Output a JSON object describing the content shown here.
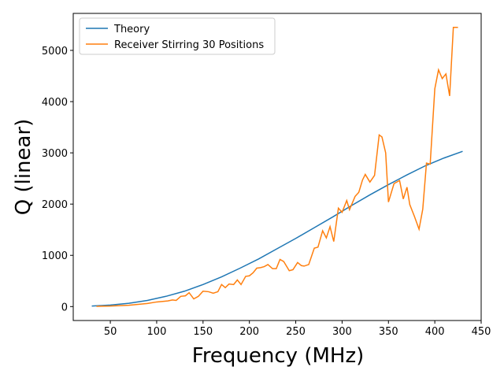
{
  "chart_data": {
    "type": "line",
    "x_label": "Frequency (MHz)",
    "y_label": "Q (linear)",
    "xlim": [
      10,
      450
    ],
    "ylim": [
      -272,
      5722
    ],
    "xticks": [
      50,
      100,
      150,
      200,
      250,
      300,
      350,
      400,
      450
    ],
    "yticks": [
      0,
      1000,
      2000,
      3000,
      4000,
      5000
    ],
    "legend": "upper left",
    "series": [
      {
        "name": "Theory",
        "color": "#1f77b4",
        "x": [
          30,
          50,
          70,
          90,
          110,
          130,
          150,
          170,
          190,
          210,
          230,
          250,
          270,
          290,
          310,
          330,
          350,
          370,
          390,
          410,
          430
        ],
        "values": [
          10,
          30,
          65,
          120,
          200,
          300,
          430,
          580,
          750,
          930,
          1130,
          1330,
          1540,
          1750,
          1970,
          2180,
          2380,
          2570,
          2750,
          2900,
          3030
        ]
      },
      {
        "name": "Receiver Stirring 30 Positions",
        "color": "#ff7f0e",
        "x": [
          35,
          50,
          70,
          90,
          100,
          112,
          117,
          121,
          126,
          131,
          135,
          140,
          145,
          150,
          156,
          161,
          166,
          170,
          174,
          178,
          183,
          187,
          191,
          196,
          200,
          204,
          208,
          212,
          216,
          220,
          225,
          229,
          233,
          237,
          243,
          247,
          252,
          256,
          259,
          264,
          270,
          274,
          279,
          283,
          287,
          291,
          296,
          300,
          305,
          308,
          314,
          318,
          322,
          325,
          330,
          335,
          340,
          343,
          347,
          350,
          356,
          362,
          366,
          370,
          373,
          378,
          383,
          387,
          391,
          395,
          400,
          404,
          408,
          412,
          416,
          420,
          425
        ],
        "values": [
          5,
          10,
          25,
          60,
          90,
          110,
          130,
          120,
          200,
          210,
          270,
          150,
          200,
          300,
          290,
          260,
          290,
          430,
          370,
          440,
          430,
          520,
          430,
          590,
          600,
          660,
          750,
          760,
          780,
          820,
          740,
          740,
          920,
          880,
          700,
          720,
          860,
          800,
          790,
          820,
          1140,
          1160,
          1480,
          1340,
          1560,
          1270,
          1920,
          1840,
          2070,
          1890,
          2150,
          2230,
          2470,
          2580,
          2430,
          2560,
          3350,
          3310,
          3000,
          2040,
          2400,
          2460,
          2100,
          2330,
          1990,
          1760,
          1510,
          1900,
          2800,
          2780,
          4250,
          4620,
          4450,
          4540,
          4110,
          5450,
          5450
        ]
      }
    ]
  }
}
